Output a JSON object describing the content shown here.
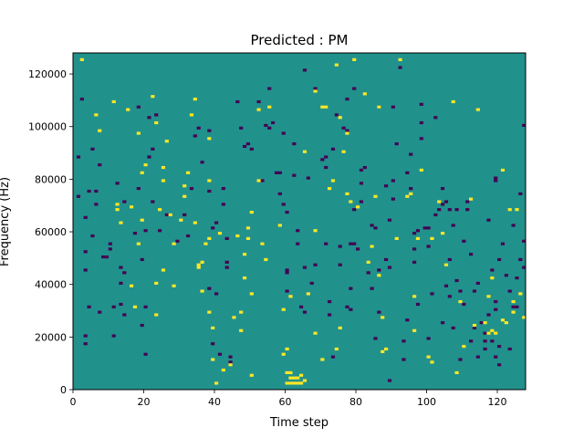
{
  "chart_data": {
    "type": "heatmap",
    "title": "Predicted : PM",
    "xlabel": "Time step",
    "ylabel": "Frequency (Hz)",
    "xlim": [
      0,
      128
    ],
    "ylim": [
      0,
      128000
    ],
    "xticks": [
      0,
      20,
      40,
      60,
      80,
      100,
      120
    ],
    "yticks": [
      0,
      20000,
      40000,
      60000,
      80000,
      100000,
      120000
    ],
    "ytick_labels": [
      "0",
      "20000",
      "40000",
      "60000",
      "80000",
      "100000",
      "120000"
    ],
    "rows": 128,
    "background_value": 0,
    "legend": "none",
    "grid": false,
    "colors": {
      "high": "#fde725",
      "mid": "#21918c",
      "low": "#440154"
    },
    "high_cells": [
      [
        2,
        125
      ],
      [
        6,
        104
      ],
      [
        7,
        98
      ],
      [
        11,
        109
      ],
      [
        12,
        68
      ],
      [
        12,
        70
      ],
      [
        13,
        63
      ],
      [
        15,
        106
      ],
      [
        16,
        69
      ],
      [
        16,
        39
      ],
      [
        17,
        31
      ],
      [
        18,
        55
      ],
      [
        18,
        97
      ],
      [
        19,
        82
      ],
      [
        19,
        64
      ],
      [
        20,
        85
      ],
      [
        22,
        111
      ],
      [
        23,
        101
      ],
      [
        23,
        28
      ],
      [
        23,
        40
      ],
      [
        24,
        68
      ],
      [
        25,
        45
      ],
      [
        25,
        84
      ],
      [
        25,
        79
      ],
      [
        26,
        94
      ],
      [
        27,
        66
      ],
      [
        28,
        39
      ],
      [
        28,
        55
      ],
      [
        30,
        64
      ],
      [
        31,
        73
      ],
      [
        31,
        77
      ],
      [
        32,
        82
      ],
      [
        33,
        104
      ],
      [
        34,
        110
      ],
      [
        34,
        63
      ],
      [
        35,
        46
      ],
      [
        35,
        47
      ],
      [
        36,
        48
      ],
      [
        36,
        37
      ],
      [
        37,
        55
      ],
      [
        38,
        95
      ],
      [
        38,
        79
      ],
      [
        38,
        57
      ],
      [
        38,
        29
      ],
      [
        39,
        23
      ],
      [
        39,
        11
      ],
      [
        40,
        2
      ],
      [
        41,
        59
      ],
      [
        42,
        7
      ],
      [
        44,
        9
      ],
      [
        45,
        27
      ],
      [
        46,
        58
      ],
      [
        47,
        22
      ],
      [
        47,
        29
      ],
      [
        48,
        42
      ],
      [
        48,
        51
      ],
      [
        49,
        61
      ],
      [
        49,
        57
      ],
      [
        50,
        36
      ],
      [
        50,
        5
      ],
      [
        50,
        67
      ],
      [
        52,
        79
      ],
      [
        52,
        106
      ],
      [
        53,
        55
      ],
      [
        54,
        49
      ],
      [
        55,
        107
      ],
      [
        58,
        62
      ],
      [
        59,
        13
      ],
      [
        59,
        30
      ],
      [
        60,
        15
      ],
      [
        60,
        6
      ],
      [
        60,
        2
      ],
      [
        61,
        6
      ],
      [
        61,
        4
      ],
      [
        61,
        2
      ],
      [
        61,
        35
      ],
      [
        62,
        4
      ],
      [
        62,
        2
      ],
      [
        63,
        4
      ],
      [
        63,
        2
      ],
      [
        64,
        5
      ],
      [
        64,
        2
      ],
      [
        65,
        3
      ],
      [
        65,
        90
      ],
      [
        66,
        36
      ],
      [
        68,
        60
      ],
      [
        68,
        21
      ],
      [
        68,
        113
      ],
      [
        70,
        11
      ],
      [
        70,
        107
      ],
      [
        71,
        107
      ],
      [
        72,
        76
      ],
      [
        73,
        79
      ],
      [
        74,
        15
      ],
      [
        74,
        123
      ],
      [
        75,
        103
      ],
      [
        75,
        23
      ],
      [
        76,
        90
      ],
      [
        77,
        97
      ],
      [
        77,
        74
      ],
      [
        78,
        71
      ],
      [
        79,
        125
      ],
      [
        80,
        69
      ],
      [
        82,
        112
      ],
      [
        83,
        48
      ],
      [
        84,
        54
      ],
      [
        85,
        73
      ],
      [
        86,
        107
      ],
      [
        86,
        43
      ],
      [
        87,
        27
      ],
      [
        87,
        14
      ],
      [
        88,
        15
      ],
      [
        91,
        57
      ],
      [
        92,
        125
      ],
      [
        94,
        73
      ],
      [
        95,
        74
      ],
      [
        96,
        22
      ],
      [
        96,
        35
      ],
      [
        97,
        57
      ],
      [
        98,
        83
      ],
      [
        100,
        12
      ],
      [
        101,
        57
      ],
      [
        101,
        10
      ],
      [
        103,
        71
      ],
      [
        104,
        59
      ],
      [
        105,
        47
      ],
      [
        107,
        109
      ],
      [
        108,
        6
      ],
      [
        109,
        33
      ],
      [
        110,
        16
      ],
      [
        112,
        72
      ],
      [
        113,
        24
      ],
      [
        114,
        106
      ],
      [
        116,
        25
      ],
      [
        117,
        35
      ],
      [
        117,
        21
      ],
      [
        118,
        42
      ],
      [
        118,
        22
      ],
      [
        119,
        21
      ],
      [
        121,
        26
      ],
      [
        121,
        83
      ],
      [
        122,
        25
      ],
      [
        123,
        68
      ],
      [
        124,
        33
      ],
      [
        124,
        29
      ],
      [
        125,
        68
      ],
      [
        126,
        36
      ],
      [
        127,
        27
      ]
    ],
    "low_cells": [
      [
        1,
        88
      ],
      [
        1,
        73
      ],
      [
        2,
        110
      ],
      [
        3,
        65
      ],
      [
        3,
        45
      ],
      [
        3,
        20
      ],
      [
        3,
        17
      ],
      [
        3,
        52
      ],
      [
        4,
        75
      ],
      [
        4,
        31
      ],
      [
        5,
        91
      ],
      [
        5,
        58
      ],
      [
        6,
        70
      ],
      [
        6,
        75
      ],
      [
        7,
        29
      ],
      [
        7,
        85
      ],
      [
        8,
        50
      ],
      [
        9,
        50
      ],
      [
        10,
        53
      ],
      [
        10,
        55
      ],
      [
        11,
        31
      ],
      [
        11,
        20
      ],
      [
        12,
        78
      ],
      [
        13,
        46
      ],
      [
        13,
        40
      ],
      [
        13,
        32
      ],
      [
        14,
        44
      ],
      [
        14,
        28
      ],
      [
        14,
        71
      ],
      [
        17,
        59
      ],
      [
        18,
        76
      ],
      [
        18,
        107
      ],
      [
        19,
        49
      ],
      [
        19,
        24
      ],
      [
        20,
        13
      ],
      [
        20,
        31
      ],
      [
        20,
        60
      ],
      [
        21,
        88
      ],
      [
        21,
        103
      ],
      [
        22,
        91
      ],
      [
        22,
        71
      ],
      [
        23,
        104
      ],
      [
        24,
        60
      ],
      [
        26,
        66
      ],
      [
        29,
        56
      ],
      [
        31,
        66
      ],
      [
        32,
        58
      ],
      [
        33,
        76
      ],
      [
        34,
        96
      ],
      [
        35,
        99
      ],
      [
        36,
        86
      ],
      [
        38,
        98
      ],
      [
        38,
        75
      ],
      [
        38,
        38
      ],
      [
        39,
        61
      ],
      [
        39,
        17
      ],
      [
        40,
        63
      ],
      [
        40,
        36
      ],
      [
        41,
        13
      ],
      [
        42,
        76
      ],
      [
        42,
        70
      ],
      [
        43,
        57
      ],
      [
        43,
        48
      ],
      [
        43,
        46
      ],
      [
        44,
        12
      ],
      [
        44,
        10
      ],
      [
        46,
        109
      ],
      [
        47,
        99
      ],
      [
        48,
        92
      ],
      [
        49,
        93
      ],
      [
        50,
        91
      ],
      [
        52,
        109
      ],
      [
        53,
        79
      ],
      [
        54,
        100
      ],
      [
        55,
        99
      ],
      [
        55,
        114
      ],
      [
        56,
        101
      ],
      [
        57,
        82
      ],
      [
        58,
        82
      ],
      [
        58,
        74
      ],
      [
        59,
        70
      ],
      [
        59,
        97
      ],
      [
        60,
        67
      ],
      [
        60,
        45
      ],
      [
        60,
        44
      ],
      [
        60,
        37
      ],
      [
        62,
        81
      ],
      [
        62,
        93
      ],
      [
        63,
        60
      ],
      [
        63,
        55
      ],
      [
        64,
        31
      ],
      [
        65,
        121
      ],
      [
        65,
        46
      ],
      [
        65,
        29
      ],
      [
        66,
        80
      ],
      [
        67,
        40
      ],
      [
        68,
        47
      ],
      [
        68,
        114
      ],
      [
        70,
        87
      ],
      [
        71,
        88
      ],
      [
        71,
        84
      ],
      [
        71,
        55
      ],
      [
        72,
        33
      ],
      [
        72,
        28
      ],
      [
        73,
        91
      ],
      [
        73,
        12
      ],
      [
        74,
        104
      ],
      [
        75,
        54
      ],
      [
        75,
        47
      ],
      [
        76,
        99
      ],
      [
        77,
        110
      ],
      [
        77,
        31
      ],
      [
        77,
        98
      ],
      [
        78,
        55
      ],
      [
        78,
        38
      ],
      [
        78,
        30
      ],
      [
        79,
        55
      ],
      [
        79,
        68
      ],
      [
        79,
        114
      ],
      [
        80,
        53
      ],
      [
        81,
        78
      ],
      [
        81,
        71
      ],
      [
        81,
        83
      ],
      [
        82,
        84
      ],
      [
        83,
        44
      ],
      [
        84,
        62
      ],
      [
        84,
        38
      ],
      [
        85,
        61
      ],
      [
        85,
        19
      ],
      [
        86,
        45
      ],
      [
        86,
        29
      ],
      [
        86,
        107
      ],
      [
        88,
        77
      ],
      [
        88,
        49
      ],
      [
        89,
        64
      ],
      [
        89,
        46
      ],
      [
        89,
        3
      ],
      [
        90,
        79
      ],
      [
        90,
        72
      ],
      [
        90,
        107
      ],
      [
        91,
        93
      ],
      [
        92,
        122
      ],
      [
        93,
        18
      ],
      [
        93,
        11
      ],
      [
        94,
        82
      ],
      [
        94,
        26
      ],
      [
        95,
        76
      ],
      [
        95,
        89
      ],
      [
        96,
        53
      ],
      [
        96,
        59
      ],
      [
        96,
        48
      ],
      [
        97,
        60
      ],
      [
        97,
        32
      ],
      [
        98,
        101
      ],
      [
        98,
        95
      ],
      [
        98,
        108
      ],
      [
        99,
        61
      ],
      [
        100,
        61
      ],
      [
        100,
        54
      ],
      [
        100,
        19
      ],
      [
        101,
        36
      ],
      [
        102,
        103
      ],
      [
        102,
        66
      ],
      [
        103,
        68
      ],
      [
        104,
        70
      ],
      [
        104,
        25
      ],
      [
        104,
        76
      ],
      [
        105,
        71
      ],
      [
        105,
        39
      ],
      [
        106,
        35
      ],
      [
        106,
        49
      ],
      [
        106,
        68
      ],
      [
        107,
        62
      ],
      [
        107,
        23
      ],
      [
        108,
        41
      ],
      [
        108,
        68
      ],
      [
        109,
        11
      ],
      [
        109,
        37
      ],
      [
        110,
        56
      ],
      [
        110,
        32
      ],
      [
        111,
        71
      ],
      [
        111,
        68
      ],
      [
        112,
        51
      ],
      [
        112,
        18
      ],
      [
        113,
        37
      ],
      [
        113,
        23
      ],
      [
        114,
        40
      ],
      [
        114,
        12
      ],
      [
        115,
        25
      ],
      [
        116,
        21
      ],
      [
        116,
        18
      ],
      [
        116,
        15
      ],
      [
        117,
        64
      ],
      [
        117,
        28
      ],
      [
        118,
        45
      ],
      [
        118,
        18
      ],
      [
        119,
        80
      ],
      [
        119,
        79
      ],
      [
        119,
        33
      ],
      [
        119,
        30
      ],
      [
        119,
        12
      ],
      [
        120,
        16
      ],
      [
        120,
        9
      ],
      [
        120,
        49
      ],
      [
        121,
        55
      ],
      [
        122,
        43
      ],
      [
        123,
        37
      ],
      [
        123,
        15
      ],
      [
        124,
        62
      ],
      [
        124,
        31
      ],
      [
        125,
        31
      ],
      [
        125,
        42
      ],
      [
        126,
        49
      ],
      [
        126,
        74
      ],
      [
        127,
        46
      ],
      [
        127,
        100
      ],
      [
        127,
        56
      ]
    ]
  }
}
